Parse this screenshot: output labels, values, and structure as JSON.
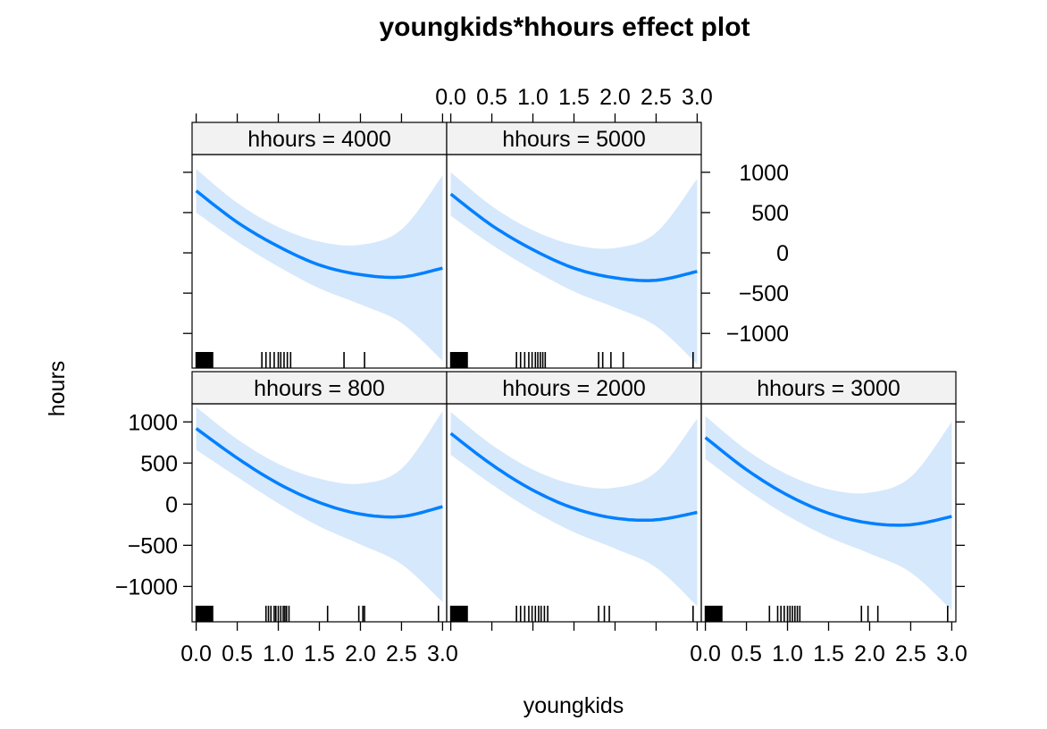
{
  "chart_data": {
    "type": "line",
    "title": "youngkids*hhours effect plot",
    "xlabel": "youngkids",
    "ylabel": "hours",
    "xlim": [
      -0.05,
      3.05
    ],
    "ylim": [
      -1430,
      1220
    ],
    "x_ticks": [
      0.0,
      0.5,
      1.0,
      1.5,
      2.0,
      2.5,
      3.0
    ],
    "x_tick_labels": [
      "0.0",
      "0.5",
      "1.0",
      "1.5",
      "2.0",
      "2.5",
      "3.0"
    ],
    "y_ticks": [
      1000,
      500,
      0,
      -500,
      -1000
    ],
    "y_tick_labels": [
      "1000",
      "500",
      "0",
      "−500",
      "−1000"
    ],
    "grid": false,
    "band_color": "#d6e8fb",
    "line_color": "#0080ff",
    "strip_color": "#f2f2f2",
    "panels": [
      {
        "strip": "hhours = 800",
        "x": [
          0,
          0.5,
          1.0,
          1.5,
          2.0,
          2.5,
          3.0
        ],
        "fit": [
          920,
          560,
          250,
          20,
          -120,
          -150,
          -30
        ],
        "upper": [
          1180,
          790,
          490,
          310,
          250,
          430,
          1130
        ],
        "lower": [
          660,
          330,
          10,
          -270,
          -490,
          -730,
          -1190
        ],
        "rug": [
          0.0,
          0.01,
          0.02,
          0.03,
          0.04,
          0.05,
          0.06,
          0.07,
          0.08,
          0.09,
          0.1,
          0.11,
          0.12,
          0.13,
          0.14,
          0.15,
          0.16,
          0.17,
          0.18,
          0.19,
          0.2,
          0.85,
          0.88,
          0.91,
          0.95,
          0.97,
          1.0,
          1.03,
          1.06,
          1.08,
          1.1,
          1.13,
          1.6,
          1.98,
          2.03,
          2.05,
          2.95
        ]
      },
      {
        "strip": "hhours = 2000",
        "x": [
          0,
          0.5,
          1.0,
          1.5,
          2.0,
          2.5,
          3.0
        ],
        "fit": [
          860,
          480,
          170,
          -50,
          -170,
          -190,
          -100
        ],
        "upper": [
          1120,
          720,
          420,
          240,
          200,
          390,
          1040
        ],
        "lower": [
          600,
          240,
          -80,
          -340,
          -540,
          -770,
          -1240
        ],
        "rug": [
          0.0,
          0.01,
          0.02,
          0.03,
          0.04,
          0.05,
          0.06,
          0.07,
          0.08,
          0.09,
          0.1,
          0.11,
          0.12,
          0.13,
          0.14,
          0.15,
          0.16,
          0.17,
          0.18,
          0.19,
          0.2,
          0.8,
          0.85,
          0.9,
          0.95,
          0.99,
          1.03,
          1.07,
          1.1,
          1.14,
          1.18,
          1.8,
          1.87,
          1.93,
          2.95
        ]
      },
      {
        "strip": "hhours = 3000",
        "x": [
          0,
          0.5,
          1.0,
          1.5,
          2.0,
          2.5,
          3.0
        ],
        "fit": [
          810,
          420,
          110,
          -110,
          -230,
          -250,
          -150
        ],
        "upper": [
          1070,
          660,
          360,
          180,
          140,
          330,
          1000
        ],
        "lower": [
          550,
          180,
          -140,
          -400,
          -600,
          -830,
          -1290
        ],
        "rug": [
          0.0,
          0.01,
          0.02,
          0.03,
          0.04,
          0.05,
          0.06,
          0.07,
          0.08,
          0.09,
          0.1,
          0.11,
          0.12,
          0.13,
          0.14,
          0.15,
          0.16,
          0.17,
          0.18,
          0.19,
          0.2,
          0.78,
          0.88,
          0.92,
          0.96,
          1.0,
          1.03,
          1.06,
          1.09,
          1.12,
          1.15,
          1.9,
          1.98,
          2.1,
          2.95
        ]
      },
      {
        "strip": "hhours = 4000",
        "x": [
          0,
          0.5,
          1.0,
          1.5,
          2.0,
          2.5,
          3.0
        ],
        "fit": [
          770,
          380,
          80,
          -150,
          -270,
          -300,
          -190
        ],
        "upper": [
          1040,
          620,
          320,
          140,
          100,
          290,
          960
        ],
        "lower": [
          500,
          140,
          -170,
          -440,
          -640,
          -870,
          -1340
        ],
        "rug": [
          0.0,
          0.01,
          0.02,
          0.03,
          0.04,
          0.05,
          0.06,
          0.07,
          0.08,
          0.09,
          0.1,
          0.11,
          0.12,
          0.13,
          0.14,
          0.15,
          0.16,
          0.17,
          0.18,
          0.19,
          0.2,
          0.8,
          0.85,
          0.9,
          0.95,
          1.0,
          1.03,
          1.07,
          1.11,
          1.15,
          1.8,
          2.05
        ]
      },
      {
        "strip": "hhours = 5000",
        "x": [
          0,
          0.5,
          1.0,
          1.5,
          2.0,
          2.5,
          3.0
        ],
        "fit": [
          730,
          340,
          40,
          -190,
          -310,
          -340,
          -230
        ],
        "upper": [
          1000,
          580,
          280,
          100,
          60,
          250,
          920
        ],
        "lower": [
          460,
          100,
          -210,
          -480,
          -680,
          -910,
          -1380
        ],
        "rug": [
          0.0,
          0.01,
          0.02,
          0.03,
          0.04,
          0.05,
          0.06,
          0.07,
          0.08,
          0.09,
          0.1,
          0.11,
          0.12,
          0.13,
          0.14,
          0.15,
          0.16,
          0.17,
          0.18,
          0.19,
          0.2,
          0.8,
          0.85,
          0.9,
          0.95,
          0.99,
          1.03,
          1.06,
          1.09,
          1.12,
          1.15,
          1.8,
          1.85,
          1.95,
          2.1,
          2.95
        ]
      }
    ]
  }
}
